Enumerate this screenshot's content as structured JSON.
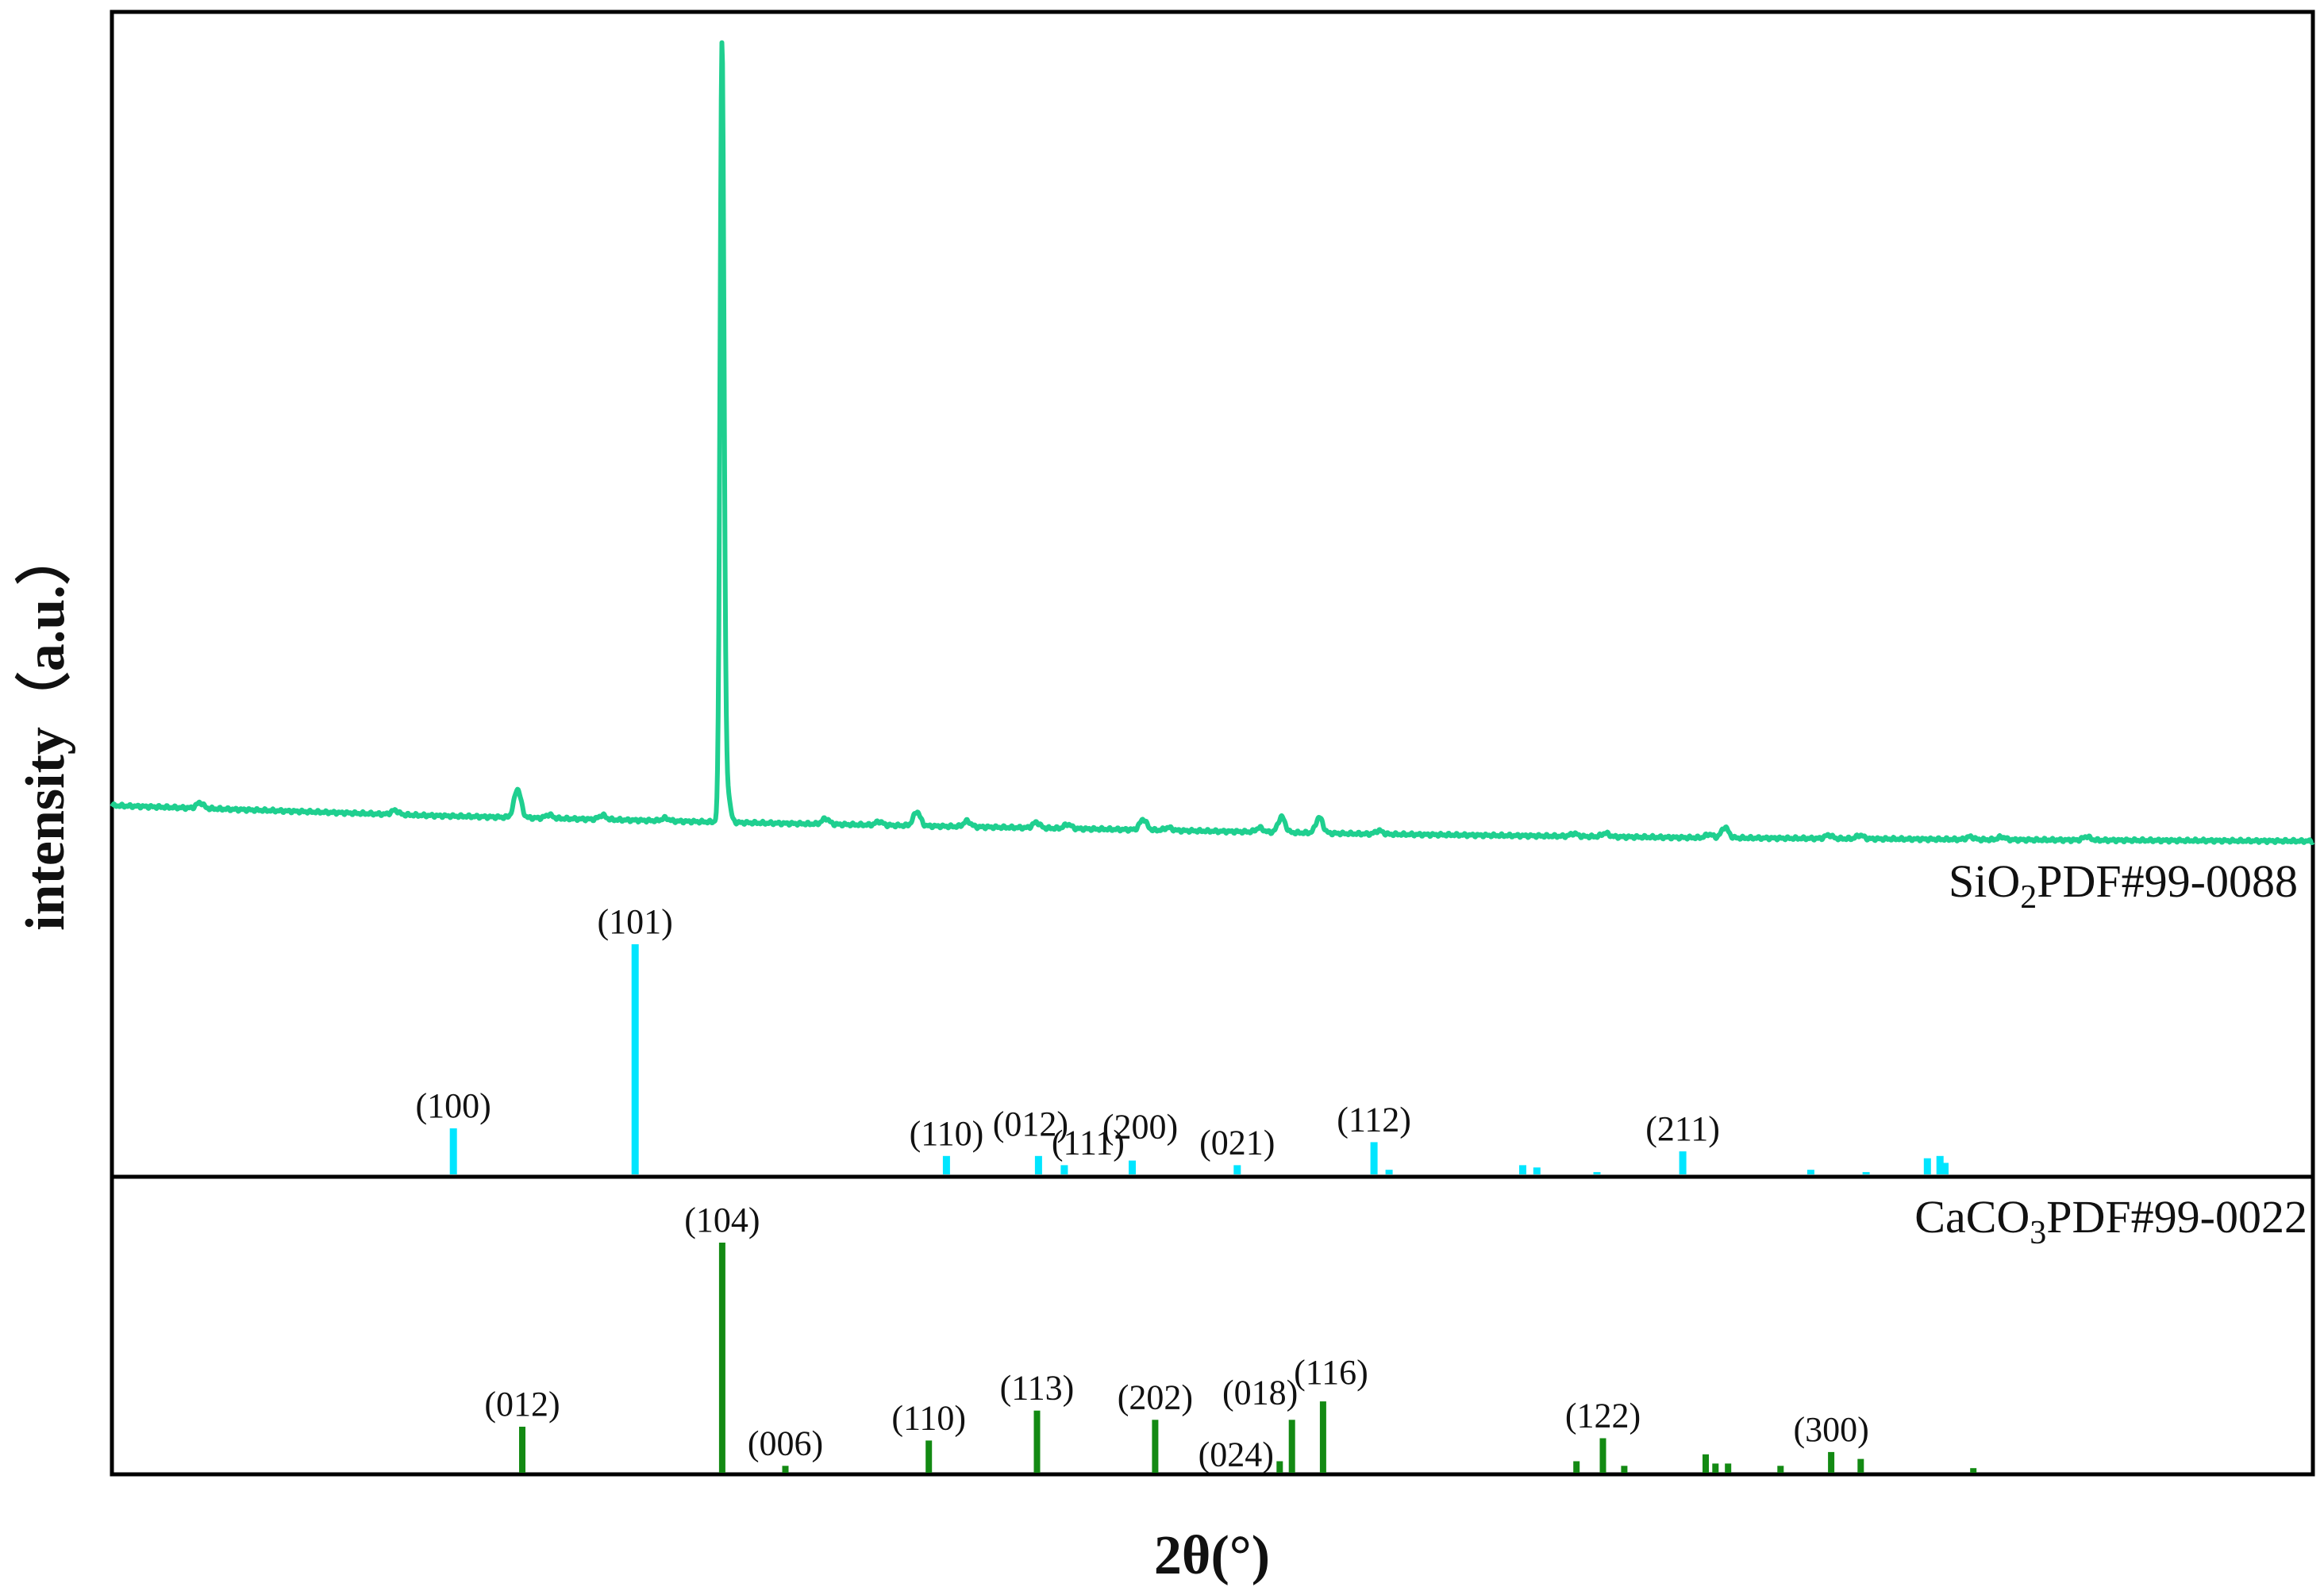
{
  "chart_data": {
    "type": "line",
    "xlabel": "2θ(°)",
    "ylabel": "intensity（a.u.）",
    "xlim": [
      10,
      80
    ],
    "grid": false,
    "colors": {
      "pattern": "#1fcf8f",
      "sio2": "#00e5ff",
      "caco3": "#138a13"
    },
    "pattern": {
      "baseline": [
        [
          10,
          5.0
        ],
        [
          20,
          3.6
        ],
        [
          30,
          2.6
        ],
        [
          40,
          1.8
        ],
        [
          50,
          1.0
        ],
        [
          60,
          0.5
        ],
        [
          70,
          0.2
        ],
        [
          80,
          0.0
        ]
      ],
      "peaks": [
        [
          12.8,
          0.8
        ],
        [
          19.0,
          0.6
        ],
        [
          22.9,
          4.0
        ],
        [
          23.9,
          0.5
        ],
        [
          25.6,
          0.6
        ],
        [
          27.6,
          0.4
        ],
        [
          29.5,
          7.5
        ],
        [
          32.7,
          0.8
        ],
        [
          34.4,
          0.5
        ],
        [
          35.6,
          2.0
        ],
        [
          37.2,
          0.8
        ],
        [
          39.4,
          0.8
        ],
        [
          40.4,
          0.6
        ],
        [
          42.8,
          1.5
        ],
        [
          43.6,
          0.4
        ],
        [
          46.5,
          0.6
        ],
        [
          47.2,
          2.2
        ],
        [
          48.4,
          2.2
        ],
        [
          50.3,
          0.5
        ],
        [
          56.5,
          0.4
        ],
        [
          57.5,
          0.5
        ],
        [
          60.8,
          0.5
        ],
        [
          61.3,
          1.5
        ],
        [
          64.6,
          0.5
        ],
        [
          65.6,
          0.5
        ],
        [
          69.1,
          0.4
        ],
        [
          70.1,
          0.4
        ],
        [
          72.8,
          0.5
        ]
      ],
      "main_peak": {
        "x": 29.4,
        "intensity": 100
      },
      "shoulder": {
        "x": 29.45,
        "intensity": 50
      }
    },
    "sio2_reference": {
      "label_main": "SiO",
      "label_sub": "2",
      "label_tail": "PDF#99-0088",
      "sticks": [
        {
          "x": 20.86,
          "i": 20,
          "hkl": "(100)"
        },
        {
          "x": 26.64,
          "i": 100,
          "hkl": "(101)"
        },
        {
          "x": 36.54,
          "i": 8,
          "hkl": "(110)"
        },
        {
          "x": 39.47,
          "i": 8,
          "hkl": "(012)"
        },
        {
          "x": 40.29,
          "i": 4,
          "hkl": "(111)"
        },
        {
          "x": 42.45,
          "i": 6,
          "hkl": "(200)"
        },
        {
          "x": 45.79,
          "i": 4,
          "hkl": "(021)"
        },
        {
          "x": 50.14,
          "i": 14,
          "hkl": "(112)"
        },
        {
          "x": 50.62,
          "i": 2,
          "hkl": ""
        },
        {
          "x": 54.87,
          "i": 4,
          "hkl": ""
        },
        {
          "x": 55.32,
          "i": 3,
          "hkl": ""
        },
        {
          "x": 57.23,
          "i": 1,
          "hkl": ""
        },
        {
          "x": 59.96,
          "i": 10,
          "hkl": "(211)"
        },
        {
          "x": 64.03,
          "i": 2,
          "hkl": ""
        },
        {
          "x": 65.79,
          "i": 1,
          "hkl": ""
        },
        {
          "x": 67.74,
          "i": 7,
          "hkl": ""
        },
        {
          "x": 68.14,
          "i": 8,
          "hkl": ""
        },
        {
          "x": 68.3,
          "i": 5,
          "hkl": ""
        }
      ]
    },
    "caco3_reference": {
      "label_main": "CaCO",
      "label_sub": "3",
      "label_tail": "PDF#99-0022",
      "sticks": [
        {
          "x": 23.05,
          "i": 20,
          "hkl": "(012)"
        },
        {
          "x": 29.41,
          "i": 100,
          "hkl": "(104)"
        },
        {
          "x": 31.42,
          "i": 3,
          "hkl": "(006)"
        },
        {
          "x": 35.98,
          "i": 14,
          "hkl": "(110)"
        },
        {
          "x": 39.42,
          "i": 27,
          "hkl": "(113)"
        },
        {
          "x": 43.18,
          "i": 23,
          "hkl": "(202)"
        },
        {
          "x": 47.14,
          "i": 5,
          "hkl": "(024)"
        },
        {
          "x": 47.53,
          "i": 23,
          "hkl": "(018)"
        },
        {
          "x": 48.52,
          "i": 31,
          "hkl": "(116)"
        },
        {
          "x": 56.58,
          "i": 5,
          "hkl": ""
        },
        {
          "x": 57.42,
          "i": 15,
          "hkl": "(122)"
        },
        {
          "x": 58.1,
          "i": 3,
          "hkl": ""
        },
        {
          "x": 60.69,
          "i": 8,
          "hkl": ""
        },
        {
          "x": 61.0,
          "i": 4,
          "hkl": ""
        },
        {
          "x": 61.4,
          "i": 4,
          "hkl": ""
        },
        {
          "x": 63.07,
          "i": 3,
          "hkl": ""
        },
        {
          "x": 64.68,
          "i": 9,
          "hkl": "(300)"
        },
        {
          "x": 65.62,
          "i": 6,
          "hkl": ""
        },
        {
          "x": 69.2,
          "i": 2,
          "hkl": ""
        }
      ]
    }
  }
}
